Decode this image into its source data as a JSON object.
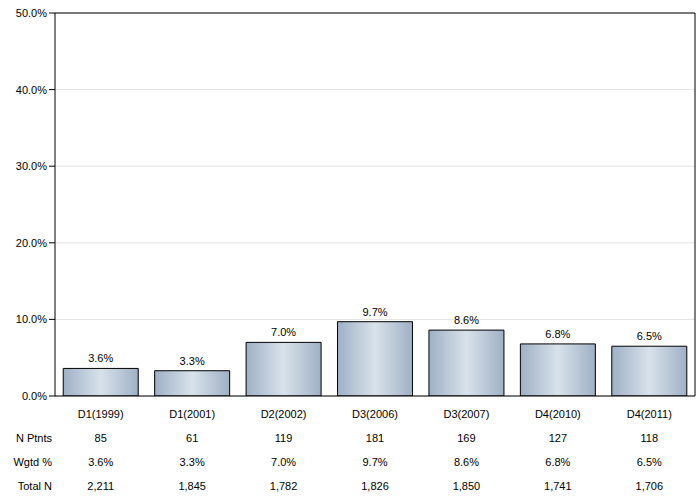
{
  "chart_data": {
    "type": "bar",
    "categories": [
      "D1(1999)",
      "D1(2001)",
      "D2(2002)",
      "D3(2006)",
      "D3(2007)",
      "D4(2010)",
      "D4(2011)"
    ],
    "values": [
      3.6,
      3.3,
      7.0,
      9.7,
      8.6,
      6.8,
      6.5
    ],
    "value_labels": [
      "3.6%",
      "3.3%",
      "7.0%",
      "9.7%",
      "8.6%",
      "6.8%",
      "6.5%"
    ],
    "data_labels": true,
    "color": "#9fb0c6",
    "ylim": [
      0,
      50
    ],
    "yticks": [
      {
        "value": 0,
        "label": "0.0%"
      },
      {
        "value": 10,
        "label": "10.0%"
      },
      {
        "value": 20,
        "label": "20.0%"
      },
      {
        "value": 30,
        "label": "30.0%"
      },
      {
        "value": 40,
        "label": "40.0%"
      },
      {
        "value": 50,
        "label": "50.0%"
      }
    ],
    "grid": true,
    "table": [
      {
        "label": "N Ptnts",
        "cells": [
          "85",
          "61",
          "119",
          "181",
          "169",
          "127",
          "118"
        ]
      },
      {
        "label": "Wgtd %",
        "cells": [
          "3.6%",
          "3.3%",
          "7.0%",
          "9.7%",
          "8.6%",
          "6.8%",
          "6.5%"
        ]
      },
      {
        "label": "Total N",
        "cells": [
          "2,211",
          "1,845",
          "1,782",
          "1,826",
          "1,850",
          "1,741",
          "1,706"
        ]
      }
    ]
  }
}
